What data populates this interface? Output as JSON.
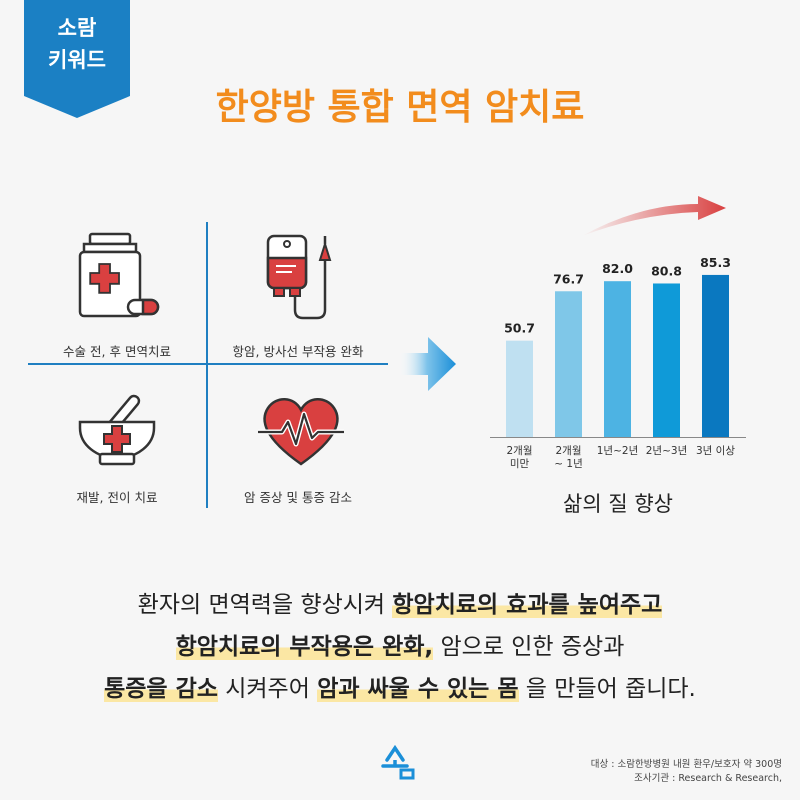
{
  "banner": {
    "line1": "소람",
    "line2": "키워드",
    "color": "#1b80c4"
  },
  "title": "한양방 통합 면역 암치료",
  "grid": [
    {
      "label": "수술 전, 후 면역치료",
      "icon": "medicine-bottle-icon"
    },
    {
      "label": "항암, 방사선 부작용 완화",
      "icon": "iv-bag-icon"
    },
    {
      "label": "재발, 전이 치료",
      "icon": "mortar-pestle-icon"
    },
    {
      "label": "암 증상 및 통증 감소",
      "icon": "heart-pulse-icon"
    }
  ],
  "chart_data": {
    "type": "bar",
    "categories": [
      "2개월 미만",
      "2개월 ~ 1년",
      "1년~2년",
      "2년~3년",
      "3년 이상"
    ],
    "category_lines": [
      [
        "2개월",
        "미만"
      ],
      [
        "2개월",
        "~ 1년"
      ],
      [
        "1년~2년"
      ],
      [
        "2년~3년"
      ],
      [
        "3년 이상"
      ]
    ],
    "values": [
      50.7,
      76.7,
      82.0,
      80.8,
      85.3
    ],
    "value_labels": [
      "50.7",
      "76.7",
      "82.0",
      "80.8",
      "85.3"
    ],
    "bar_colors": [
      "#bfe0f1",
      "#7fc7e8",
      "#4db3e3",
      "#0f9ad8",
      "#0a78c0"
    ],
    "ylim": [
      0,
      100
    ],
    "caption": "삶의 질 향상"
  },
  "paragraph": {
    "l1a": "환자의 면역력을 향상시켜 ",
    "l1b": "항암치료의 효과를 높여주고",
    "l2a": "항암치료의 부작용은 완화,",
    "l2b": " 암으로 인한 증상과",
    "l3a": "통증을 감소",
    "l3b": " 시켜주어 ",
    "l3c": "암과 싸울 수 있는 몸",
    "l3d": " 을 만들어 줍니다."
  },
  "footnote": {
    "line1": "대상 : 소람한방병원 내원 환우/보호자 약 300명",
    "line2": "조사기관 : Research & Research,"
  },
  "colors": {
    "accent": "#f28c1d",
    "blue": "#1f7fc1",
    "red": "#d94040"
  }
}
